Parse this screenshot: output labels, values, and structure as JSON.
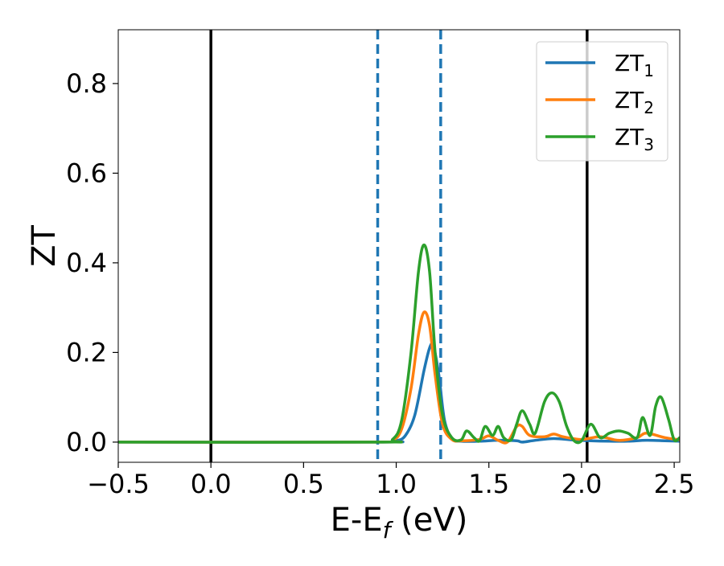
{
  "chart_data": {
    "type": "line",
    "title": "",
    "xlabel": "E-E_f (eV)",
    "xlabel_main": "E-E",
    "xlabel_sub": "f",
    "xlabel_unit": " (eV)",
    "ylabel": "ZT",
    "xlim": [
      -0.5,
      2.53
    ],
    "ylim": [
      -0.045,
      0.92
    ],
    "x_ticks": [
      -0.5,
      0.0,
      0.5,
      1.0,
      1.5,
      2.0,
      2.5
    ],
    "x_tick_labels": [
      "−0.5",
      "0.0",
      "0.5",
      "1.0",
      "1.5",
      "2.0",
      "2.5"
    ],
    "y_ticks": [
      0.0,
      0.2,
      0.4,
      0.6,
      0.8
    ],
    "y_tick_labels": [
      "0.0",
      "0.2",
      "0.4",
      "0.6",
      "0.8"
    ],
    "grid": false,
    "legend_position": "top-right",
    "series": [
      {
        "name": "ZT_1",
        "label_main": "ZT",
        "label_sub": "1",
        "color": "#1f77b4",
        "x": [
          -0.5,
          0.9,
          1.0,
          1.05,
          1.1,
          1.15,
          1.18,
          1.2,
          1.23,
          1.26,
          1.3,
          1.35,
          1.45,
          1.55,
          1.65,
          1.68,
          1.75,
          1.85,
          1.95,
          2.05,
          2.15,
          2.25,
          2.35,
          2.45,
          2.53
        ],
        "y": [
          0.0,
          0.0,
          0.003,
          0.015,
          0.06,
          0.16,
          0.21,
          0.215,
          0.15,
          0.05,
          0.008,
          0.002,
          0.002,
          0.004,
          0.003,
          0.0,
          0.004,
          0.008,
          0.005,
          0.003,
          0.002,
          0.002,
          0.004,
          0.003,
          0.002
        ]
      },
      {
        "name": "ZT_2",
        "label_main": "ZT",
        "label_sub": "2",
        "color": "#ff7f0e",
        "x": [
          -0.5,
          0.9,
          0.98,
          1.03,
          1.08,
          1.12,
          1.15,
          1.18,
          1.21,
          1.25,
          1.3,
          1.35,
          1.45,
          1.5,
          1.55,
          1.6,
          1.65,
          1.68,
          1.72,
          1.8,
          1.85,
          1.9,
          2.0,
          2.1,
          2.2,
          2.3,
          2.35,
          2.45,
          2.53
        ],
        "y": [
          0.0,
          0.0,
          0.004,
          0.03,
          0.12,
          0.24,
          0.29,
          0.26,
          0.15,
          0.04,
          0.006,
          0.003,
          0.006,
          0.014,
          0.004,
          0.0,
          0.035,
          0.035,
          0.015,
          0.012,
          0.018,
          0.012,
          0.006,
          0.012,
          0.004,
          0.01,
          0.02,
          0.01,
          0.005
        ]
      },
      {
        "name": "ZT_3",
        "label_main": "ZT",
        "label_sub": "3",
        "color": "#2ca02c",
        "x": [
          -0.5,
          0.9,
          0.98,
          1.03,
          1.08,
          1.12,
          1.15,
          1.18,
          1.21,
          1.25,
          1.3,
          1.35,
          1.38,
          1.42,
          1.45,
          1.48,
          1.52,
          1.55,
          1.58,
          1.62,
          1.65,
          1.68,
          1.72,
          1.75,
          1.8,
          1.84,
          1.88,
          1.92,
          1.96,
          2.0,
          2.05,
          2.1,
          2.15,
          2.2,
          2.25,
          2.3,
          2.33,
          2.37,
          2.4,
          2.43,
          2.47,
          2.5,
          2.53
        ],
        "y": [
          0.0,
          0.0,
          0.006,
          0.05,
          0.2,
          0.38,
          0.44,
          0.38,
          0.2,
          0.06,
          0.01,
          0.005,
          0.025,
          0.01,
          0.003,
          0.035,
          0.015,
          0.035,
          0.01,
          0.005,
          0.04,
          0.07,
          0.04,
          0.02,
          0.09,
          0.11,
          0.09,
          0.035,
          0.003,
          0.003,
          0.04,
          0.01,
          0.02,
          0.025,
          0.02,
          0.01,
          0.055,
          0.015,
          0.08,
          0.1,
          0.05,
          0.005,
          0.01
        ]
      }
    ],
    "vertical_lines": [
      {
        "x": 0.0,
        "style": "solid",
        "color": "#000000"
      },
      {
        "x": 2.03,
        "style": "solid",
        "color": "#000000"
      },
      {
        "x": 0.9,
        "style": "dashed",
        "color": "#1f77b4"
      },
      {
        "x": 1.24,
        "style": "dashed",
        "color": "#1f77b4"
      }
    ]
  }
}
